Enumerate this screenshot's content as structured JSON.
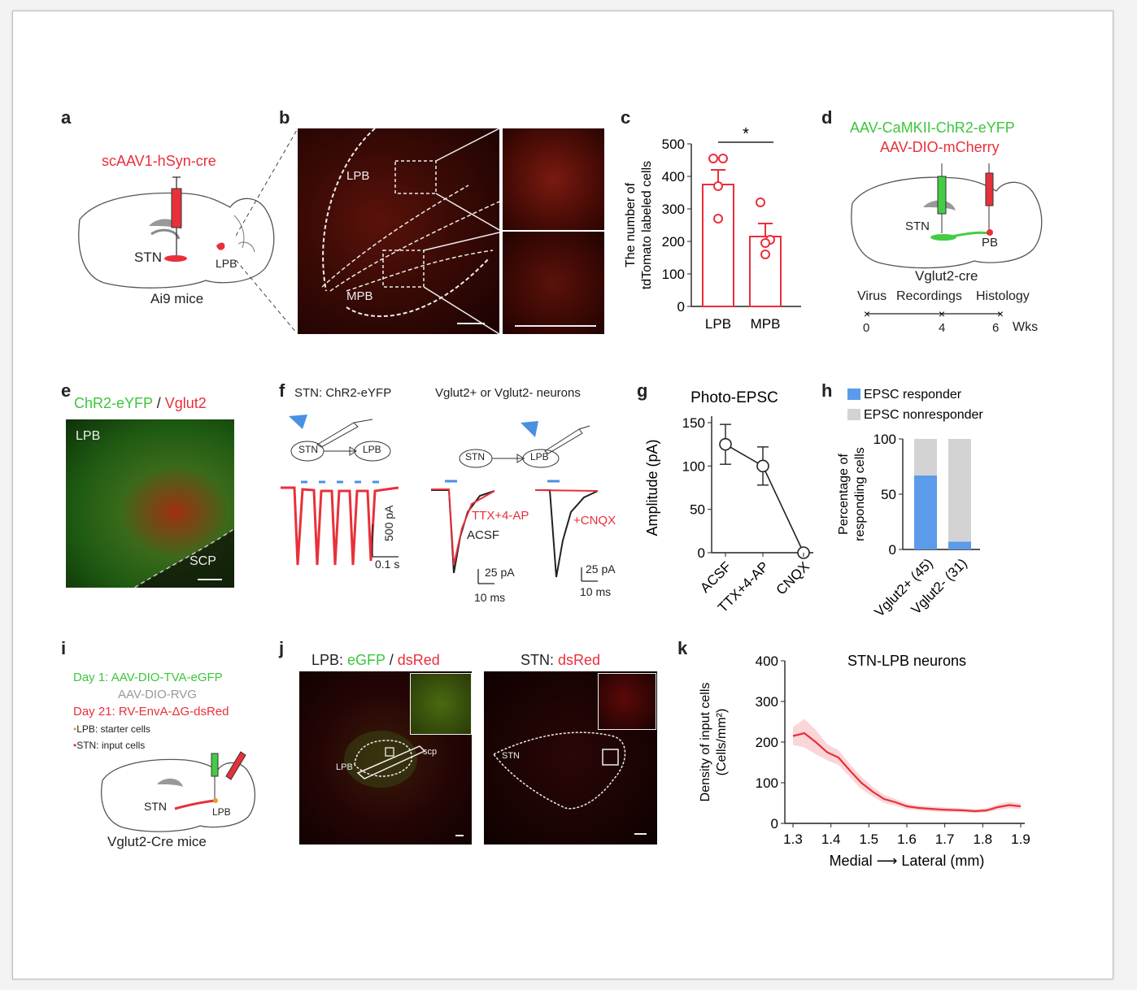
{
  "panels": {
    "a": {
      "letter": "a",
      "virus": "scAAV1-hSyn-cre",
      "stn": "STN",
      "lpb": "LPB",
      "mice": "Ai9 mice"
    },
    "b": {
      "letter": "b",
      "lpb": "LPB",
      "mpb": "MPB"
    },
    "c": {
      "letter": "c",
      "sig": "*"
    },
    "d": {
      "letter": "d",
      "virus1": "AAV-CaMKII-ChR2-eYFP",
      "virus2": "AAV-DIO-mCherry",
      "stn": "STN",
      "pb": "PB",
      "mice": "Vglut2-cre",
      "timeline_labels": [
        "Virus",
        "Recordings",
        "Histology"
      ],
      "timeline_ticks": [
        "0",
        "4",
        "6"
      ],
      "timeline_unit": "Wks"
    },
    "e": {
      "letter": "e",
      "title_green": "ChR2-eYFP",
      "title_sep": " / ",
      "title_red": "Vglut2",
      "lpb": "LPB",
      "scp": "SCP"
    },
    "f": {
      "letter": "f",
      "title1": "STN: ChR2-eYFP",
      "title2": "Vglut2+ or Vglut2- neurons",
      "stn": "STN",
      "lpb": "LPB",
      "ttx": "TTX+4-AP",
      "acsf": "ACSF",
      "cnqx": "+CNQX",
      "scale_y1": "500 pA",
      "scale_x1": "0.1 s",
      "scale_y2": "25 pA",
      "scale_x2": "10 ms",
      "scale_y3": "25 pA",
      "scale_x3": "10 ms"
    },
    "g": {
      "letter": "g"
    },
    "h": {
      "letter": "h"
    },
    "i": {
      "letter": "i",
      "day1": "Day 1: AAV-DIO-TVA-eGFP",
      "rvg": "AAV-DIO-RVG",
      "day21": "Day 21: RV-EnvA-ΔG-dsRed",
      "starter": "LPB: starter cells",
      "input": "STN: input cells",
      "stn": "STN",
      "lpb": "LPB",
      "mice": "Vglut2-Cre mice"
    },
    "j": {
      "letter": "j",
      "t1_pre": "LPB: ",
      "t1_green": "eGFP",
      "t1_sep": " / ",
      "t1_red": "dsRed",
      "t2_pre": "STN: ",
      "t2_red": "dsRed",
      "lpb": "LPB",
      "scp": "scp",
      "stn": "STN"
    },
    "k": {
      "letter": "k"
    }
  },
  "chart_data": [
    {
      "id": "c",
      "type": "bar",
      "categories": [
        "LPB",
        "MPB"
      ],
      "values": [
        375,
        215
      ],
      "errors": [
        45,
        40
      ],
      "points": [
        [
          455,
          455,
          370,
          270
        ],
        [
          320,
          205,
          195,
          160
        ]
      ],
      "ylabel": "The number of tdTomato labeled cells",
      "ylim": [
        0,
        500
      ],
      "yticks": [
        0,
        100,
        200,
        300,
        400,
        500
      ],
      "color": "#e8303a",
      "sig": "*"
    },
    {
      "id": "g",
      "type": "line",
      "title": "Photo-EPSC",
      "categories": [
        "ACSF",
        "TTX+4-AP",
        "CNQX"
      ],
      "values": [
        125,
        100,
        0
      ],
      "errors": [
        23,
        22,
        0
      ],
      "ylabel": "Amplitude (pA)",
      "ylim": [
        0,
        150
      ],
      "yticks": [
        0,
        50,
        100,
        150
      ]
    },
    {
      "id": "h",
      "type": "bar",
      "stacked": true,
      "categories": [
        "Vglut2+ (45)",
        "Vglut2- (31)"
      ],
      "series": [
        {
          "name": "EPSC responder",
          "values": [
            67,
            7
          ],
          "color": "#5b9bea"
        },
        {
          "name": "EPSC nonresponder",
          "values": [
            33,
            93
          ],
          "color": "#d3d3d3"
        }
      ],
      "ylabel": "Percentage of responding cells",
      "ylim": [
        0,
        100
      ],
      "yticks": [
        0,
        50,
        100
      ]
    },
    {
      "id": "k",
      "type": "line",
      "title": "STN-LPB neurons",
      "x": [
        1.3,
        1.33,
        1.36,
        1.39,
        1.42,
        1.45,
        1.48,
        1.51,
        1.54,
        1.57,
        1.6,
        1.63,
        1.66,
        1.69,
        1.72,
        1.75,
        1.78,
        1.81,
        1.84,
        1.87,
        1.9
      ],
      "values": [
        215,
        222,
        200,
        175,
        162,
        130,
        100,
        78,
        60,
        52,
        42,
        38,
        36,
        34,
        33,
        32,
        30,
        32,
        40,
        45,
        42
      ],
      "band": [
        22,
        35,
        30,
        20,
        18,
        16,
        15,
        12,
        10,
        8,
        7,
        6,
        6,
        6,
        5,
        5,
        5,
        5,
        7,
        8,
        7
      ],
      "xlabel": "Medial ⟶ Lateral (mm)",
      "ylabel": "Density of input cells (Cells/mm²)",
      "xlim": [
        1.3,
        1.9
      ],
      "ylim": [
        0,
        400
      ],
      "xticks": [
        1.3,
        1.4,
        1.5,
        1.6,
        1.7,
        1.8,
        1.9
      ],
      "yticks": [
        0,
        100,
        200,
        300,
        400
      ],
      "color": "#e8303a"
    }
  ]
}
